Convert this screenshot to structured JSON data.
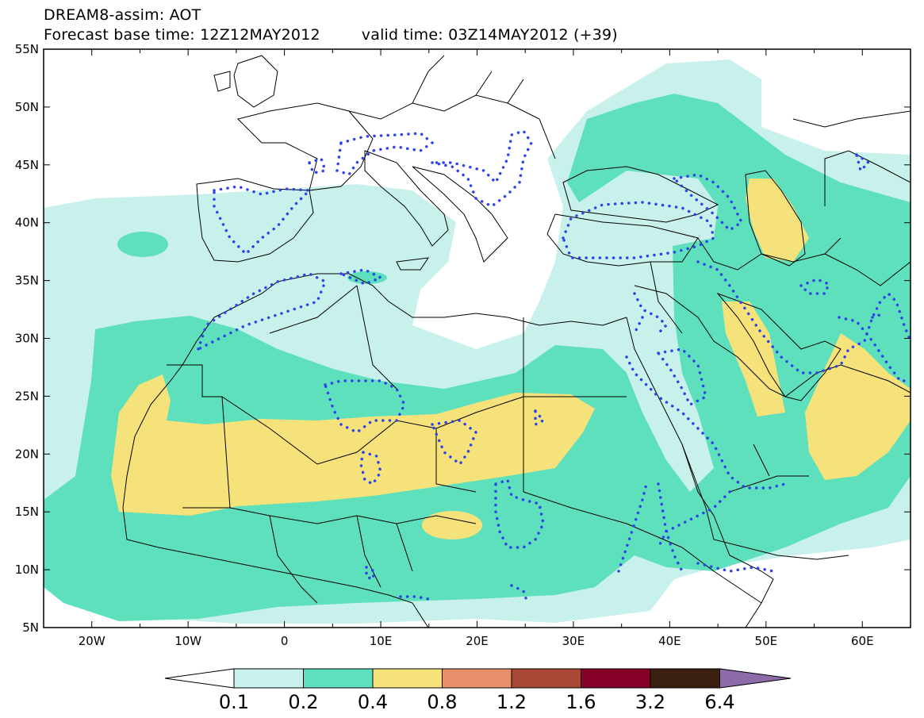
{
  "header": {
    "title": "DREAM8-assim: AOT",
    "base_time_label": "Forecast base time: 12Z12MAY2012",
    "valid_time_label": "valid time: 03Z14MAY2012 (+39)"
  },
  "map": {
    "lon_range": [
      -25,
      65
    ],
    "lat_range": [
      5,
      55
    ],
    "lat_labels": [
      "55N",
      "50N",
      "45N",
      "40N",
      "35N",
      "30N",
      "25N",
      "20N",
      "15N",
      "10N",
      "5N"
    ],
    "lon_labels": [
      "20W",
      "10W",
      "0",
      "10E",
      "20E",
      "30E",
      "40E",
      "50E",
      "60E"
    ],
    "field": "Aerosol Optical Thickness (AOT)",
    "colors": {
      "c1": "#c8f1ec",
      "c2": "#5ee0bd",
      "c3": "#f5e27a",
      "contour_dots": "#2e44e8",
      "borders": "#000000"
    }
  },
  "colorbar": {
    "labels": [
      "0.1",
      "0.2",
      "0.4",
      "0.8",
      "1.2",
      "1.6",
      "3.2",
      "6.4"
    ],
    "colors": [
      "#ffffff",
      "#c8f1ec",
      "#5ee0bd",
      "#f5e27a",
      "#e9906b",
      "#a84836",
      "#860027",
      "#3b1f11",
      "#8d6aa8"
    ]
  }
}
